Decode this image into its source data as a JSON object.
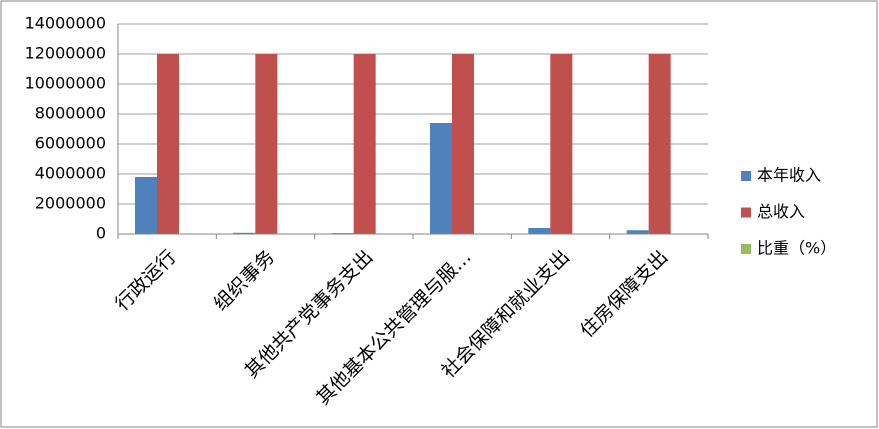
{
  "chart_data": {
    "type": "bar",
    "categories": [
      "行政运行",
      "组织事务",
      "其他共产党事务支出",
      "其他基本公共管理与服…",
      "社会保障和就业支出",
      "住房保障支出"
    ],
    "series": [
      {
        "name": "本年收入",
        "color": "#4f81bd",
        "values": [
          3800000,
          80000,
          60000,
          7400000,
          400000,
          250000
        ]
      },
      {
        "name": "总收入",
        "color": "#c0504d",
        "values": [
          12000000,
          12000000,
          12000000,
          12000000,
          12000000,
          12000000
        ]
      },
      {
        "name": "比重（%）",
        "color": "#9bbb59",
        "values": [
          31.7,
          0.7,
          0.5,
          61.7,
          3.3,
          2.1
        ]
      }
    ],
    "ylim": [
      0,
      14000000
    ],
    "yticks": [
      0,
      2000000,
      4000000,
      6000000,
      8000000,
      10000000,
      12000000,
      14000000
    ],
    "grid": true
  }
}
